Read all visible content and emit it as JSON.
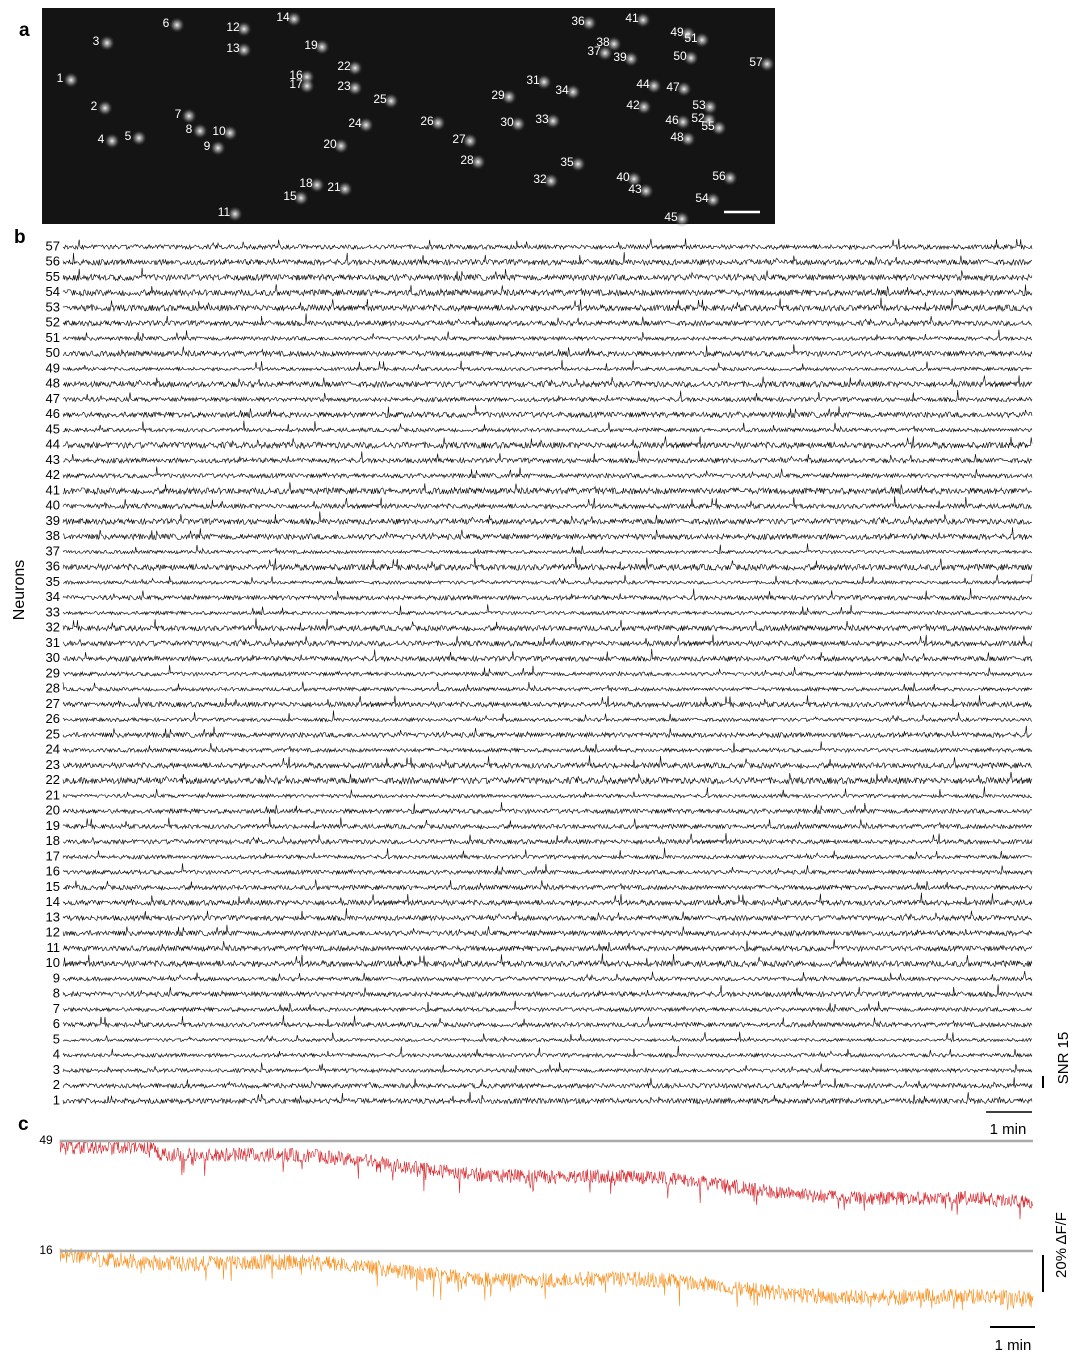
{
  "panel_a": {
    "label": "a",
    "cell_labels": [
      "1",
      "2",
      "3",
      "4",
      "5",
      "6",
      "7",
      "8",
      "9",
      "10",
      "11",
      "12",
      "13",
      "14",
      "15",
      "16",
      "17",
      "18",
      "19",
      "20",
      "21",
      "22",
      "23",
      "24",
      "25",
      "26",
      "27",
      "28",
      "29",
      "30",
      "31",
      "32",
      "33",
      "34",
      "35",
      "36",
      "37",
      "38",
      "39",
      "40",
      "41",
      "42",
      "43",
      "44",
      "45",
      "46",
      "47",
      "48",
      "49",
      "50",
      "51",
      "52",
      "53",
      "54",
      "55",
      "56",
      "57"
    ]
  },
  "panel_b": {
    "label": "b",
    "y_label": "Neurons",
    "row_labels": [
      "1",
      "2",
      "3",
      "4",
      "5",
      "6",
      "7",
      "8",
      "9",
      "10",
      "11",
      "12",
      "13",
      "14",
      "15",
      "16",
      "17",
      "18",
      "19",
      "20",
      "21",
      "22",
      "23",
      "24",
      "25",
      "26",
      "27",
      "28",
      "29",
      "30",
      "31",
      "32",
      "33",
      "34",
      "35",
      "36",
      "37",
      "38",
      "39",
      "40",
      "41",
      "42",
      "43",
      "44",
      "45",
      "46",
      "47",
      "48",
      "49",
      "50",
      "51",
      "52",
      "53",
      "54",
      "55",
      "56",
      "57"
    ],
    "snr_scale": "SNR 15",
    "time_scale": "1 min"
  },
  "panel_c": {
    "label": "c",
    "traces": [
      {
        "name": "49",
        "color": "#d7262b"
      },
      {
        "name": "16",
        "color": "#f7901e"
      }
    ],
    "dff_scale": "20% ΔF/F",
    "time_scale": "1 min"
  }
}
